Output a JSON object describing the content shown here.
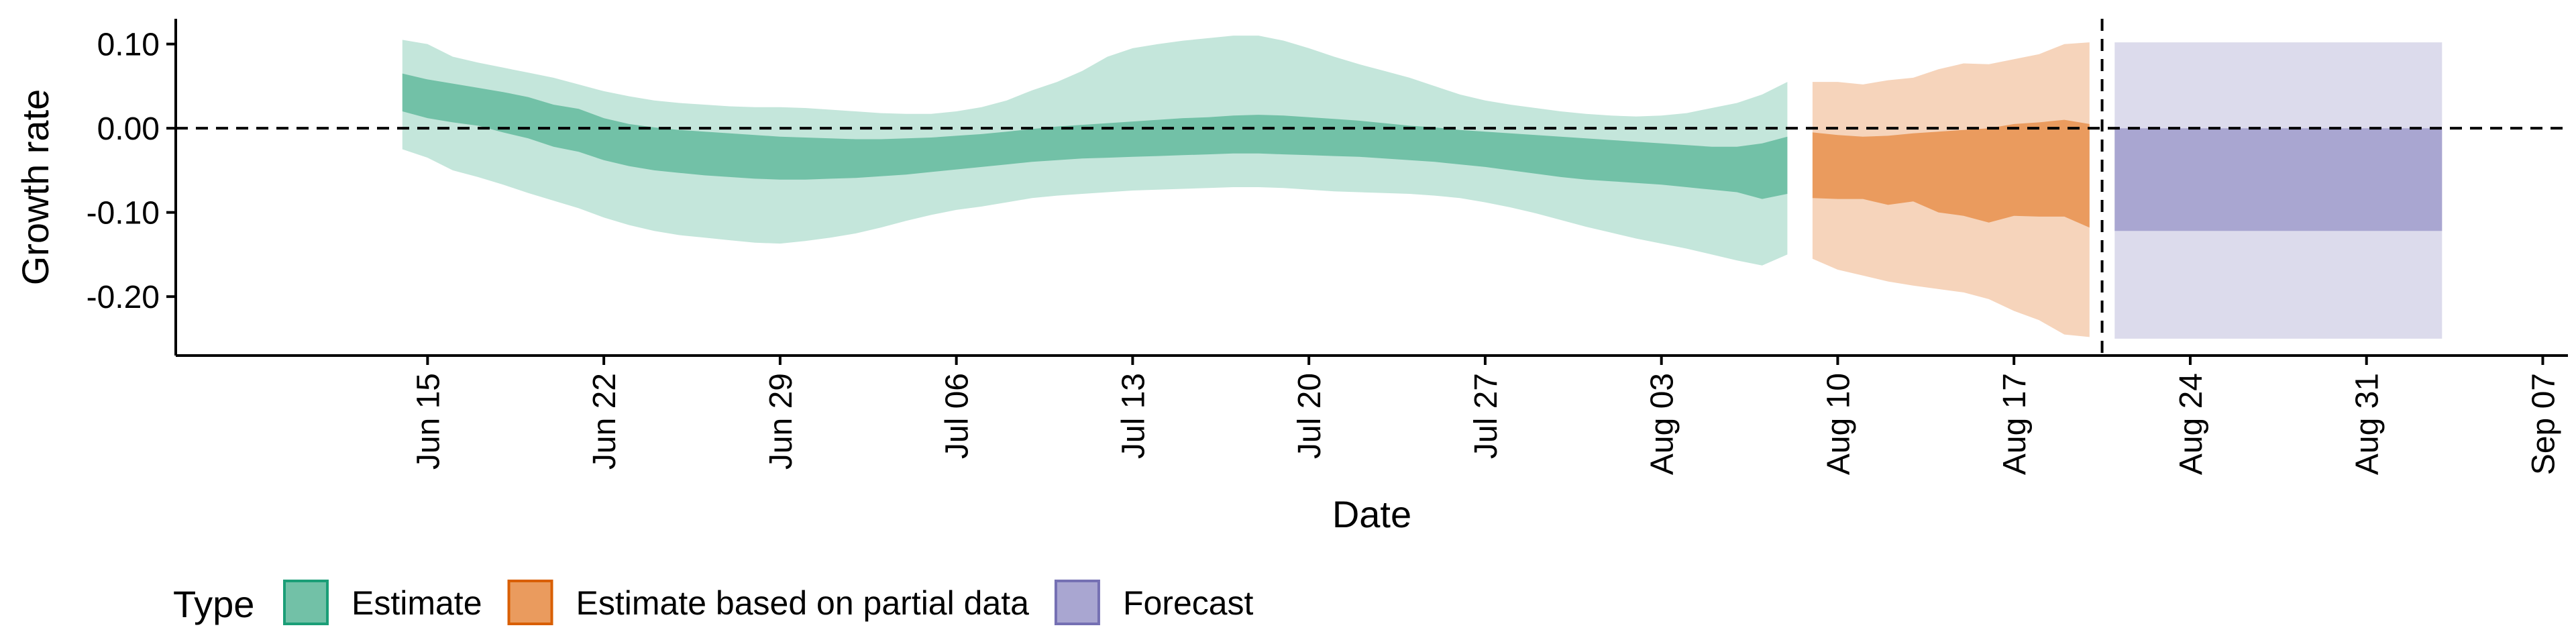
{
  "chart_data": {
    "type": "area",
    "xlabel": "Date",
    "ylabel": "Growth rate",
    "xlim": [
      "2020-06-05",
      "2020-09-08"
    ],
    "ylim": [
      -0.27,
      0.13
    ],
    "x_ticks": [
      {
        "date": "2020-06-15",
        "label": "Jun 15"
      },
      {
        "date": "2020-06-22",
        "label": "Jun 22"
      },
      {
        "date": "2020-06-29",
        "label": "Jun 29"
      },
      {
        "date": "2020-07-06",
        "label": "Jul 06"
      },
      {
        "date": "2020-07-13",
        "label": "Jul 13"
      },
      {
        "date": "2020-07-20",
        "label": "Jul 20"
      },
      {
        "date": "2020-07-27",
        "label": "Jul 27"
      },
      {
        "date": "2020-08-03",
        "label": "Aug 03"
      },
      {
        "date": "2020-08-10",
        "label": "Aug 10"
      },
      {
        "date": "2020-08-17",
        "label": "Aug 17"
      },
      {
        "date": "2020-08-24",
        "label": "Aug 24"
      },
      {
        "date": "2020-08-31",
        "label": "Aug 31"
      },
      {
        "date": "2020-09-07",
        "label": "Sep 07"
      }
    ],
    "y_ticks": [
      {
        "value": 0.1,
        "label": "0.10"
      },
      {
        "value": 0.0,
        "label": "0.00"
      },
      {
        "value": -0.1,
        "label": "-0.10"
      },
      {
        "value": -0.2,
        "label": "-0.20"
      }
    ],
    "reference_lines": {
      "hline_y": 0,
      "vline_date": "2020-08-20"
    },
    "grid": false,
    "legend": {
      "title": "Type",
      "position": "bottom-left",
      "entries": [
        {
          "label": "Estimate",
          "fill": "#72c1a7",
          "stroke": "#1b9e77"
        },
        {
          "label": "Estimate based on partial data",
          "fill": "#ea9b5e",
          "stroke": "#d95f02"
        },
        {
          "label": "Forecast",
          "fill": "#a9a6d1",
          "stroke": "#7570b3"
        }
      ]
    },
    "series": [
      {
        "name": "Estimate",
        "inner_color": "#72c1a7",
        "outer_color": "#c4e6db",
        "points": [
          {
            "x": "2020-06-14",
            "lo90": -0.025,
            "lo50": 0.02,
            "hi50": 0.065,
            "hi90": 0.105
          },
          {
            "x": "2020-06-15",
            "lo90": -0.035,
            "lo50": 0.012,
            "hi50": 0.058,
            "hi90": 0.1
          },
          {
            "x": "2020-06-16",
            "lo90": -0.05,
            "lo50": 0.007,
            "hi50": 0.053,
            "hi90": 0.085
          },
          {
            "x": "2020-06-17",
            "lo90": -0.058,
            "lo50": 0.003,
            "hi50": 0.048,
            "hi90": 0.078
          },
          {
            "x": "2020-06-18",
            "lo90": -0.067,
            "lo50": -0.005,
            "hi50": 0.043,
            "hi90": 0.072
          },
          {
            "x": "2020-06-19",
            "lo90": -0.077,
            "lo50": -0.012,
            "hi50": 0.037,
            "hi90": 0.066
          },
          {
            "x": "2020-06-20",
            "lo90": -0.086,
            "lo50": -0.022,
            "hi50": 0.028,
            "hi90": 0.06
          },
          {
            "x": "2020-06-21",
            "lo90": -0.095,
            "lo50": -0.028,
            "hi50": 0.023,
            "hi90": 0.052
          },
          {
            "x": "2020-06-22",
            "lo90": -0.106,
            "lo50": -0.038,
            "hi50": 0.012,
            "hi90": 0.044
          },
          {
            "x": "2020-06-23",
            "lo90": -0.115,
            "lo50": -0.045,
            "hi50": 0.005,
            "hi90": 0.038
          },
          {
            "x": "2020-06-24",
            "lo90": -0.122,
            "lo50": -0.05,
            "hi50": 0.001,
            "hi90": 0.033
          },
          {
            "x": "2020-06-25",
            "lo90": -0.127,
            "lo50": -0.053,
            "hi50": -0.002,
            "hi90": 0.03
          },
          {
            "x": "2020-06-26",
            "lo90": -0.13,
            "lo50": -0.056,
            "hi50": -0.004,
            "hi90": 0.028
          },
          {
            "x": "2020-06-27",
            "lo90": -0.133,
            "lo50": -0.058,
            "hi50": -0.006,
            "hi90": 0.026
          },
          {
            "x": "2020-06-28",
            "lo90": -0.136,
            "lo50": -0.06,
            "hi50": -0.008,
            "hi90": 0.025
          },
          {
            "x": "2020-06-29",
            "lo90": -0.137,
            "lo50": -0.061,
            "hi50": -0.01,
            "hi90": 0.025
          },
          {
            "x": "2020-06-30",
            "lo90": -0.134,
            "lo50": -0.061,
            "hi50": -0.011,
            "hi90": 0.024
          },
          {
            "x": "2020-07-01",
            "lo90": -0.13,
            "lo50": -0.06,
            "hi50": -0.012,
            "hi90": 0.022
          },
          {
            "x": "2020-07-02",
            "lo90": -0.125,
            "lo50": -0.059,
            "hi50": -0.013,
            "hi90": 0.02
          },
          {
            "x": "2020-07-03",
            "lo90": -0.118,
            "lo50": -0.057,
            "hi50": -0.013,
            "hi90": 0.018
          },
          {
            "x": "2020-07-04",
            "lo90": -0.11,
            "lo50": -0.055,
            "hi50": -0.012,
            "hi90": 0.017
          },
          {
            "x": "2020-07-05",
            "lo90": -0.103,
            "lo50": -0.052,
            "hi50": -0.011,
            "hi90": 0.017
          },
          {
            "x": "2020-07-06",
            "lo90": -0.097,
            "lo50": -0.049,
            "hi50": -0.009,
            "hi90": 0.02
          },
          {
            "x": "2020-07-07",
            "lo90": -0.093,
            "lo50": -0.046,
            "hi50": -0.007,
            "hi90": 0.025
          },
          {
            "x": "2020-07-08",
            "lo90": -0.088,
            "lo50": -0.043,
            "hi50": -0.004,
            "hi90": 0.033
          },
          {
            "x": "2020-07-09",
            "lo90": -0.083,
            "lo50": -0.04,
            "hi50": -0.001,
            "hi90": 0.045
          },
          {
            "x": "2020-07-10",
            "lo90": -0.08,
            "lo50": -0.038,
            "hi50": 0.002,
            "hi90": 0.055
          },
          {
            "x": "2020-07-11",
            "lo90": -0.078,
            "lo50": -0.036,
            "hi50": 0.004,
            "hi90": 0.068
          },
          {
            "x": "2020-07-12",
            "lo90": -0.076,
            "lo50": -0.035,
            "hi50": 0.006,
            "hi90": 0.085
          },
          {
            "x": "2020-07-13",
            "lo90": -0.074,
            "lo50": -0.034,
            "hi50": 0.008,
            "hi90": 0.095
          },
          {
            "x": "2020-07-14",
            "lo90": -0.073,
            "lo50": -0.033,
            "hi50": 0.01,
            "hi90": 0.1
          },
          {
            "x": "2020-07-15",
            "lo90": -0.072,
            "lo50": -0.032,
            "hi50": 0.012,
            "hi90": 0.104
          },
          {
            "x": "2020-07-16",
            "lo90": -0.071,
            "lo50": -0.031,
            "hi50": 0.013,
            "hi90": 0.107
          },
          {
            "x": "2020-07-17",
            "lo90": -0.07,
            "lo50": -0.03,
            "hi50": 0.015,
            "hi90": 0.11
          },
          {
            "x": "2020-07-18",
            "lo90": -0.07,
            "lo50": -0.03,
            "hi50": 0.016,
            "hi90": 0.11
          },
          {
            "x": "2020-07-19",
            "lo90": -0.071,
            "lo50": -0.031,
            "hi50": 0.015,
            "hi90": 0.104
          },
          {
            "x": "2020-07-20",
            "lo90": -0.073,
            "lo50": -0.032,
            "hi50": 0.013,
            "hi90": 0.095
          },
          {
            "x": "2020-07-21",
            "lo90": -0.075,
            "lo50": -0.033,
            "hi50": 0.011,
            "hi90": 0.085
          },
          {
            "x": "2020-07-22",
            "lo90": -0.076,
            "lo50": -0.034,
            "hi50": 0.009,
            "hi90": 0.076
          },
          {
            "x": "2020-07-23",
            "lo90": -0.077,
            "lo50": -0.036,
            "hi50": 0.006,
            "hi90": 0.068
          },
          {
            "x": "2020-07-24",
            "lo90": -0.078,
            "lo50": -0.038,
            "hi50": 0.003,
            "hi90": 0.06
          },
          {
            "x": "2020-07-25",
            "lo90": -0.08,
            "lo50": -0.04,
            "hi50": 0.001,
            "hi90": 0.05
          },
          {
            "x": "2020-07-26",
            "lo90": -0.083,
            "lo50": -0.043,
            "hi50": -0.002,
            "hi90": 0.04
          },
          {
            "x": "2020-07-27",
            "lo90": -0.088,
            "lo50": -0.046,
            "hi50": -0.004,
            "hi90": 0.033
          },
          {
            "x": "2020-07-28",
            "lo90": -0.094,
            "lo50": -0.05,
            "hi50": -0.006,
            "hi90": 0.028
          },
          {
            "x": "2020-07-29",
            "lo90": -0.101,
            "lo50": -0.054,
            "hi50": -0.008,
            "hi90": 0.024
          },
          {
            "x": "2020-07-30",
            "lo90": -0.109,
            "lo50": -0.058,
            "hi50": -0.01,
            "hi90": 0.02
          },
          {
            "x": "2020-07-31",
            "lo90": -0.117,
            "lo50": -0.061,
            "hi50": -0.012,
            "hi90": 0.017
          },
          {
            "x": "2020-08-01",
            "lo90": -0.124,
            "lo50": -0.063,
            "hi50": -0.014,
            "hi90": 0.015
          },
          {
            "x": "2020-08-02",
            "lo90": -0.131,
            "lo50": -0.065,
            "hi50": -0.016,
            "hi90": 0.014
          },
          {
            "x": "2020-08-03",
            "lo90": -0.137,
            "lo50": -0.067,
            "hi50": -0.018,
            "hi90": 0.015
          },
          {
            "x": "2020-08-04",
            "lo90": -0.143,
            "lo50": -0.07,
            "hi50": -0.02,
            "hi90": 0.018
          },
          {
            "x": "2020-08-05",
            "lo90": -0.15,
            "lo50": -0.073,
            "hi50": -0.022,
            "hi90": 0.024
          },
          {
            "x": "2020-08-06",
            "lo90": -0.157,
            "lo50": -0.076,
            "hi50": -0.022,
            "hi90": 0.03
          },
          {
            "x": "2020-08-07",
            "lo90": -0.163,
            "lo50": -0.084,
            "hi50": -0.018,
            "hi90": 0.04
          },
          {
            "x": "2020-08-08",
            "lo90": -0.15,
            "lo50": -0.078,
            "hi50": -0.01,
            "hi90": 0.055
          }
        ]
      },
      {
        "name": "Estimate based on partial data",
        "inner_color": "#ea9b5e",
        "outer_color": "#f6d4bb",
        "points": [
          {
            "x": "2020-08-09",
            "lo90": -0.155,
            "lo50": -0.083,
            "hi50": -0.005,
            "hi90": 0.055
          },
          {
            "x": "2020-08-10",
            "lo90": -0.168,
            "lo50": -0.084,
            "hi50": -0.008,
            "hi90": 0.055
          },
          {
            "x": "2020-08-11",
            "lo90": -0.175,
            "lo50": -0.084,
            "hi50": -0.01,
            "hi90": 0.052
          },
          {
            "x": "2020-08-12",
            "lo90": -0.182,
            "lo50": -0.091,
            "hi50": -0.009,
            "hi90": 0.057
          },
          {
            "x": "2020-08-13",
            "lo90": -0.187,
            "lo50": -0.087,
            "hi50": -0.006,
            "hi90": 0.06
          },
          {
            "x": "2020-08-14",
            "lo90": -0.191,
            "lo50": -0.1,
            "hi50": -0.004,
            "hi90": 0.07
          },
          {
            "x": "2020-08-15",
            "lo90": -0.195,
            "lo50": -0.104,
            "hi50": -0.002,
            "hi90": 0.077
          },
          {
            "x": "2020-08-16",
            "lo90": -0.203,
            "lo50": -0.112,
            "hi50": 0.0,
            "hi90": 0.076
          },
          {
            "x": "2020-08-17",
            "lo90": -0.217,
            "lo50": -0.104,
            "hi50": 0.005,
            "hi90": 0.082
          },
          {
            "x": "2020-08-18",
            "lo90": -0.228,
            "lo50": -0.105,
            "hi50": 0.007,
            "hi90": 0.088
          },
          {
            "x": "2020-08-19",
            "lo90": -0.245,
            "lo50": -0.105,
            "hi50": 0.01,
            "hi90": 0.1
          },
          {
            "x": "2020-08-20",
            "lo90": -0.248,
            "lo50": -0.118,
            "hi50": 0.005,
            "hi90": 0.102
          }
        ]
      },
      {
        "name": "Forecast",
        "inner_color": "#a9a6d1",
        "outer_color": "#dcdbec",
        "points": [
          {
            "x": "2020-08-21",
            "lo90": -0.25,
            "lo50": -0.122,
            "hi50": 0.0,
            "hi90": 0.102
          },
          {
            "x": "2020-09-03",
            "lo90": -0.25,
            "lo50": -0.122,
            "hi50": 0.0,
            "hi90": 0.102
          }
        ]
      }
    ]
  }
}
